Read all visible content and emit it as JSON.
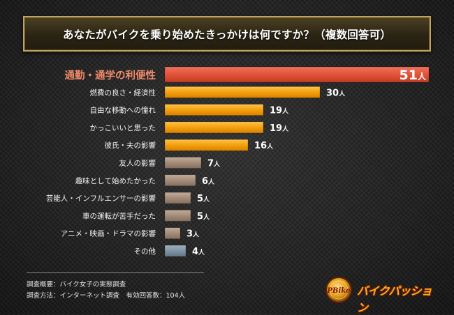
{
  "title": "あなたがバイクを乗り始めたきっかけは何ですか？（複数回答可）",
  "chart_data": {
    "type": "bar",
    "orientation": "horizontal",
    "title": "あなたがバイクを乗り始めたきっかけは何ですか？（複数回答可）",
    "unit": "人",
    "xlim": [
      0,
      51
    ],
    "grid": false,
    "categories": [
      "通勤・通学の利便性",
      "燃費の良さ・経済性",
      "自由な移動への憧れ",
      "かっこいいと思った",
      "彼氏・夫の影響",
      "友人の影響",
      "趣味として始めたかった",
      "芸能人・インフルエンサーの影響",
      "車の運転が苦手だった",
      "アニメ・映画・ドラマの影響",
      "その他"
    ],
    "values": [
      51,
      30,
      19,
      19,
      16,
      7,
      6,
      5,
      5,
      3,
      4
    ],
    "colors": {
      "top": "#e2533a",
      "high": "#f3a00e",
      "mid": "#a48c79",
      "other": "#7f93a3",
      "highlight_label": "#f08a6b"
    }
  },
  "footer": {
    "survey_summary": "調査概要：バイク女子の実態調査",
    "survey_method": "調査方法：インターネット調査　有効回答数：104人"
  },
  "logo": {
    "emblem_text": "PBike",
    "brand_name": "バイクパッション"
  }
}
